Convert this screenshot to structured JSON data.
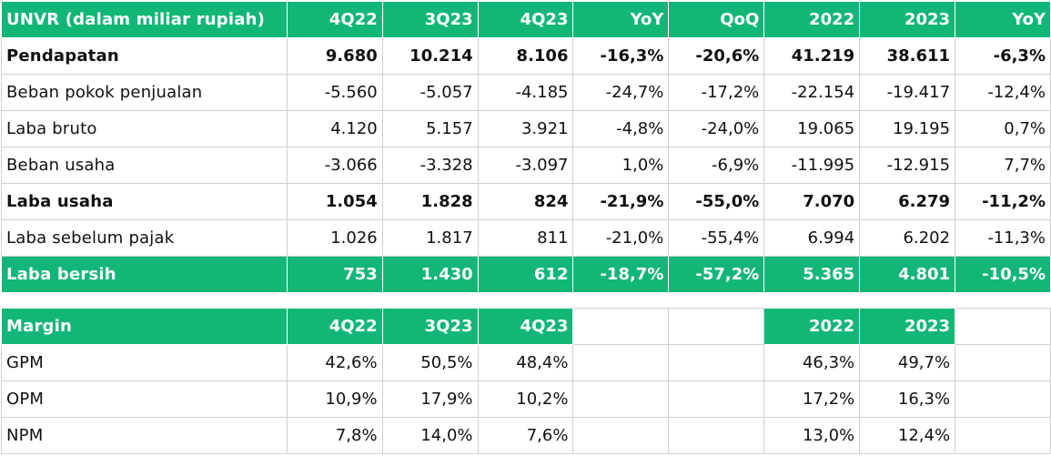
{
  "income": {
    "header": [
      "UNVR (dalam miliar rupiah)",
      "4Q22",
      "3Q23",
      "4Q23",
      "YoY",
      "QoQ",
      "2022",
      "2023",
      "YoY"
    ],
    "rows": [
      {
        "cells": [
          "Pendapatan",
          "9.680",
          "10.214",
          "8.106",
          "-16,3%",
          "-20,6%",
          "41.219",
          "38.611",
          "-6,3%"
        ],
        "style": "bold"
      },
      {
        "cells": [
          "Beban pokok penjualan",
          "-5.560",
          "-5.057",
          "-4.185",
          "-24,7%",
          "-17,2%",
          "-22.154",
          "-19.417",
          "-12,4%"
        ],
        "style": "normal"
      },
      {
        "cells": [
          "Laba bruto",
          "4.120",
          "5.157",
          "3.921",
          "-4,8%",
          "-24,0%",
          "19.065",
          "19.195",
          "0,7%"
        ],
        "style": "normal"
      },
      {
        "cells": [
          "Beban usaha",
          "-3.066",
          "-3.328",
          "-3.097",
          "1,0%",
          "-6,9%",
          "-11.995",
          "-12.915",
          "7,7%"
        ],
        "style": "normal"
      },
      {
        "cells": [
          "Laba usaha",
          "1.054",
          "1.828",
          "824",
          "-21,9%",
          "-55,0%",
          "7.070",
          "6.279",
          "-11,2%"
        ],
        "style": "bold"
      },
      {
        "cells": [
          "Laba sebelum pajak",
          "1.026",
          "1.817",
          "811",
          "-21,0%",
          "-55,4%",
          "6.994",
          "6.202",
          "-11,3%"
        ],
        "style": "normal"
      },
      {
        "cells": [
          "Laba bersih",
          "753",
          "1.430",
          "612",
          "-18,7%",
          "-57,2%",
          "5.365",
          "4.801",
          "-10,5%"
        ],
        "style": "highlight"
      }
    ]
  },
  "margin": {
    "header": [
      "Margin",
      "4Q22",
      "3Q23",
      "4Q23",
      "",
      "",
      "2022",
      "2023",
      ""
    ],
    "rows": [
      {
        "cells": [
          "GPM",
          "42,6%",
          "50,5%",
          "48,4%",
          "",
          "",
          "46,3%",
          "49,7%",
          ""
        ],
        "style": "normal"
      },
      {
        "cells": [
          "OPM",
          "10,9%",
          "17,9%",
          "10,2%",
          "",
          "",
          "17,2%",
          "16,3%",
          ""
        ],
        "style": "normal"
      },
      {
        "cells": [
          "NPM",
          "7,8%",
          "14,0%",
          "7,6%",
          "",
          "",
          "13,0%",
          "12,4%",
          ""
        ],
        "style": "normal"
      }
    ]
  },
  "colors": {
    "header_green": "#12b777",
    "header_text": "#ffffff",
    "grid": "#d0d0d0"
  }
}
